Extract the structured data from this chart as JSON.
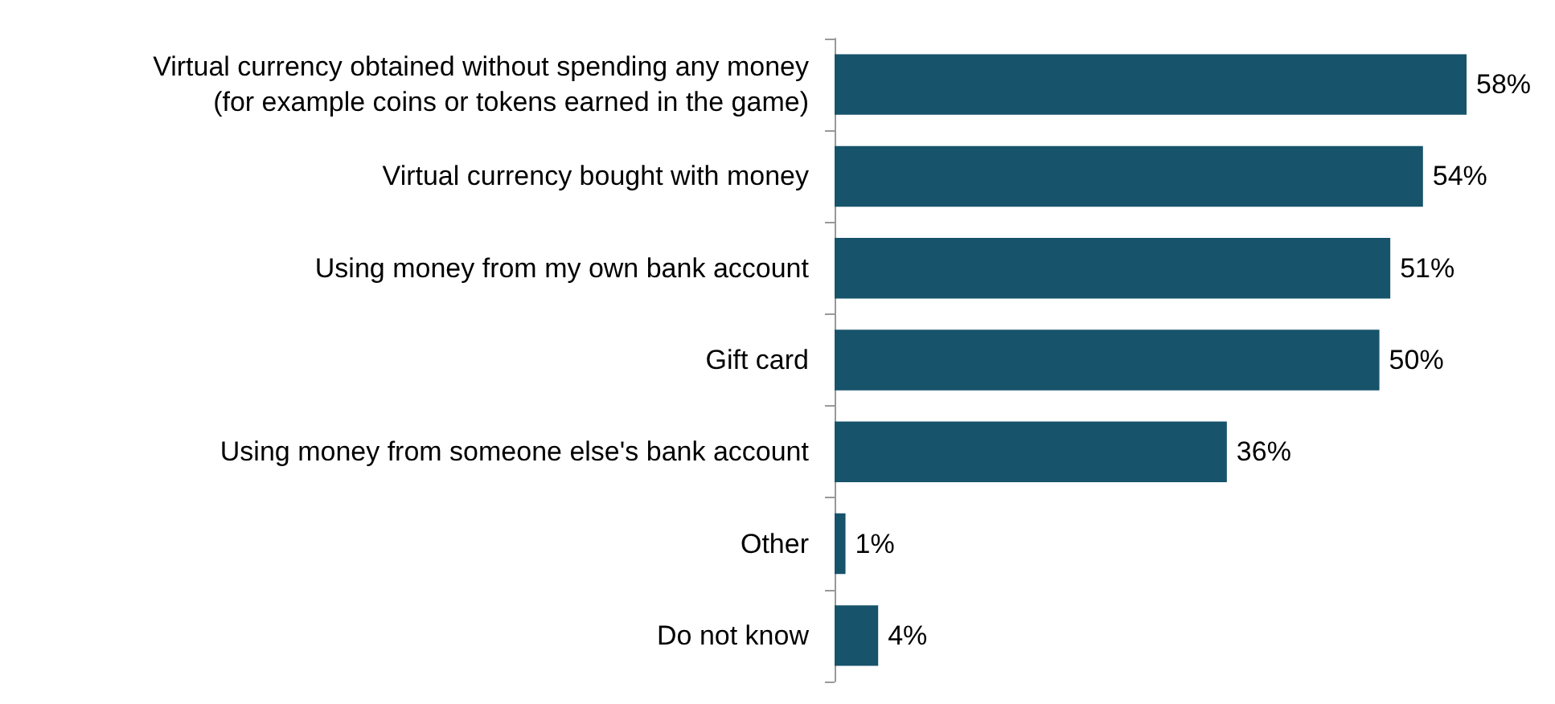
{
  "chart_data": {
    "type": "bar",
    "orientation": "horizontal",
    "categories": [
      "Virtual currency obtained without spending any money\n(for example coins or tokens earned in the game)",
      "Virtual currency bought with money",
      "Using money from my own bank account",
      "Gift card",
      "Using money from someone else's bank account",
      "Other",
      "Do not know"
    ],
    "values": [
      58,
      54,
      51,
      50,
      36,
      1,
      4
    ],
    "value_labels": [
      "58%",
      "54%",
      "51%",
      "50%",
      "36%",
      "1%",
      "4%"
    ],
    "color": "#17536b"
  }
}
